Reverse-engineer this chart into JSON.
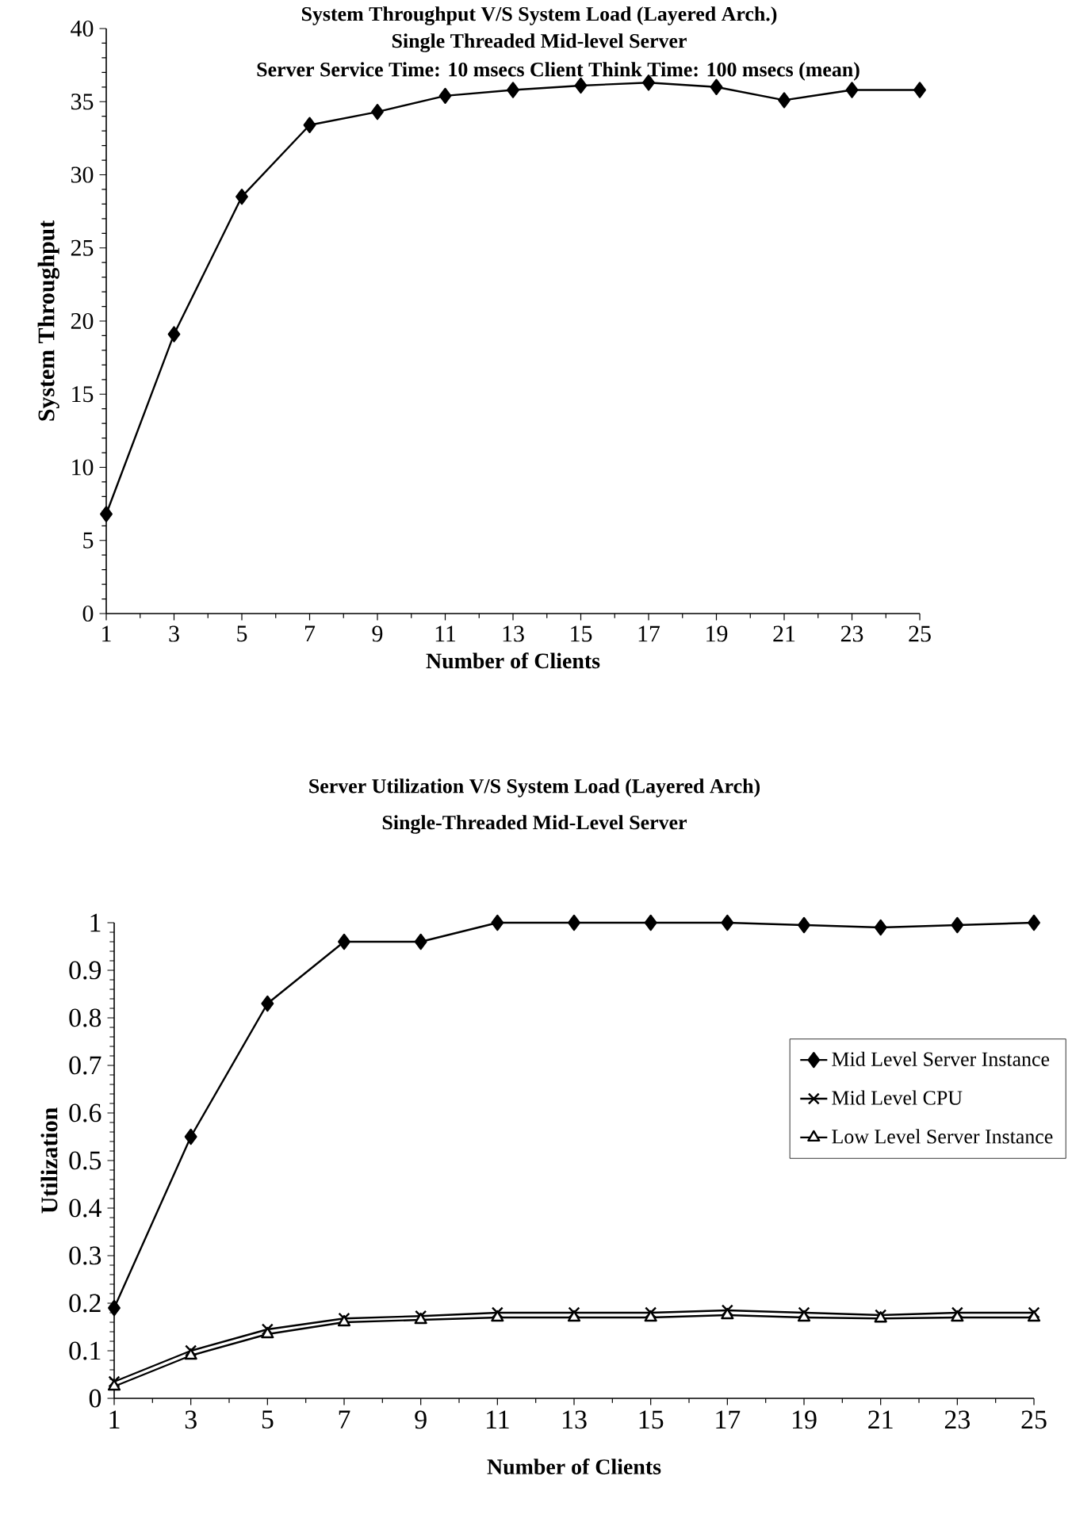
{
  "chart_data": [
    {
      "type": "line",
      "title": "System Throughput V/S System Load (Layered Arch.)",
      "subtitle": "Single Threaded Mid-level Server",
      "annotations": [
        "Server Service Time: 10 msecs  Client Think Time: 100 msecs (mean)"
      ],
      "xlabel": "Number of Clients",
      "ylabel": "System Throughput",
      "categories": [
        "1",
        "3",
        "5",
        "7",
        "9",
        "11",
        "13",
        "15",
        "17",
        "19",
        "21",
        "23",
        "25"
      ],
      "series": [
        {
          "color": "#000000",
          "values": [
            6.8,
            19.1,
            28.5,
            33.4,
            34.3,
            35.4,
            35.8,
            36.1,
            36.3,
            36.0,
            35.1,
            35.8,
            35.8
          ]
        }
      ],
      "ylim": [
        0,
        40
      ],
      "yticks": [
        0,
        5,
        10,
        15,
        20,
        25,
        30,
        35,
        40
      ],
      "marker": "diamond",
      "line_style": "solid"
    },
    {
      "type": "line",
      "title": "Server Utilization V/S System Load (Layered Arch)",
      "subtitle": "Single-Threaded Mid-Level Server",
      "xlabel": "Number of Clients",
      "ylabel": "Utilization",
      "categories": [
        "1",
        "3",
        "5",
        "7",
        "9",
        "11",
        "13",
        "15",
        "17",
        "19",
        "21",
        "23",
        "25"
      ],
      "series": [
        {
          "name": "Mid Level Server Instance",
          "color": "#000000",
          "marker": "diamond",
          "values": [
            0.19,
            0.55,
            0.83,
            0.96,
            0.96,
            1.0,
            1.0,
            1.0,
            1.0,
            0.995,
            0.99,
            0.995,
            1.0
          ]
        },
        {
          "name": "Mid Level CPU",
          "color": "#000000",
          "marker": "cross",
          "values": [
            0.035,
            0.1,
            0.145,
            0.168,
            0.173,
            0.18,
            0.18,
            0.18,
            0.185,
            0.18,
            0.175,
            0.18,
            0.18
          ]
        },
        {
          "name": "Low Level Server Instance",
          "color": "#000000",
          "marker": "triangle",
          "values": [
            0.025,
            0.09,
            0.135,
            0.16,
            0.165,
            0.17,
            0.17,
            0.17,
            0.175,
            0.17,
            0.168,
            0.17,
            0.17
          ]
        }
      ],
      "ylim": [
        0,
        1
      ],
      "yticks": [
        0,
        0.1,
        0.2,
        0.3,
        0.4,
        0.5,
        0.6,
        0.7,
        0.8,
        0.9,
        1
      ],
      "legend": "right",
      "line_style": "solid"
    }
  ]
}
